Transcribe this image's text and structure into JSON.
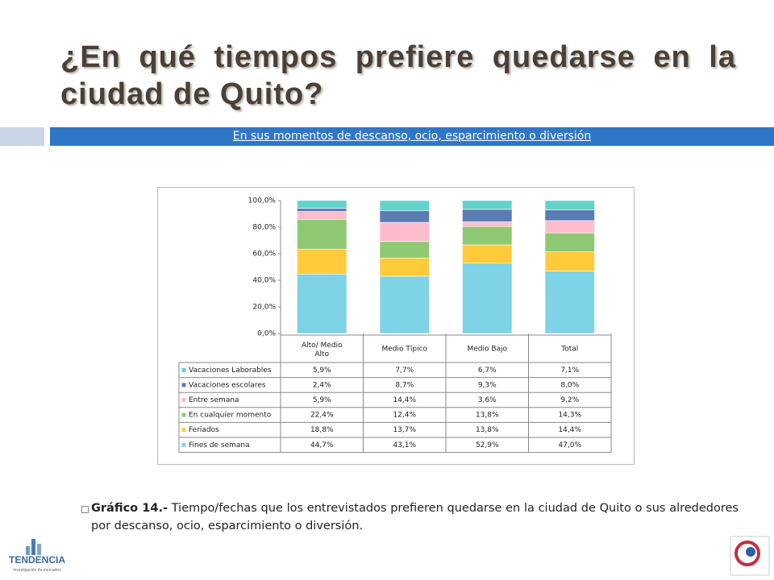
{
  "slide": {
    "title": "¿En qué tiempos prefiere quedarse en la ciudad de Quito?",
    "subtitle": "En sus momentos de descanso, ocio, esparcimiento o diversión",
    "caption_label": "Gráfico 14.-",
    "caption_text": "Tiempo/fechas que los entrevistados prefieren quedarse en la ciudad de Quito o sus alrededores por descanso, ocio, esparcimiento o diversión.",
    "logo_text": "TENDENCIA",
    "logo_subtext": "investigación de mercados"
  },
  "chart_data": {
    "type": "stacked_bar",
    "categories": [
      "Alto/ Medio Alto",
      "Medio Típico",
      "Medio Bajo",
      "Total"
    ],
    "series": [
      {
        "name": "Fines de semana",
        "color": "#7fd3e6",
        "values": [
          44.7,
          43.1,
          52.9,
          47.0
        ],
        "value_labels": [
          "44,7%",
          "43,1%",
          "52,9%",
          "47,0%"
        ]
      },
      {
        "name": "Feriados",
        "color": "#ffcb3a",
        "values": [
          18.8,
          13.7,
          13.8,
          14.4
        ],
        "value_labels": [
          "18,8%",
          "13,7%",
          "13,8%",
          "14,4%"
        ]
      },
      {
        "name": "En cualquier momento",
        "color": "#8fc873",
        "values": [
          22.4,
          12.4,
          13.8,
          14.3
        ],
        "value_labels": [
          "22,4%",
          "12,4%",
          "13,8%",
          "14,3%"
        ]
      },
      {
        "name": "Entre semana",
        "color": "#ffbccb",
        "values": [
          5.9,
          14.4,
          3.6,
          9.2
        ],
        "value_labels": [
          "5,9%",
          "14,4%",
          "3,6%",
          "9,2%"
        ]
      },
      {
        "name": "Vacaciones escolares",
        "color": "#5b7bb3",
        "values": [
          2.4,
          8.7,
          9.3,
          8.0
        ],
        "value_labels": [
          "2,4%",
          "8,7%",
          "9,3%",
          "8,0%"
        ]
      },
      {
        "name": "Vacaciones Laborables",
        "color": "#63d2cb",
        "values": [
          5.9,
          7.7,
          6.7,
          7.1
        ],
        "value_labels": [
          "5,9%",
          "7,7%",
          "6,7%",
          "7,1%"
        ]
      }
    ],
    "ylim": [
      0,
      100
    ],
    "yticks": [
      {
        "value": 0,
        "label": "0,0%"
      },
      {
        "value": 20,
        "label": "20,0%"
      },
      {
        "value": 40,
        "label": "40,0%"
      },
      {
        "value": 60,
        "label": "60,0%"
      },
      {
        "value": 80,
        "label": "80,0%"
      },
      {
        "value": 100,
        "label": "100,0%"
      }
    ],
    "grid": false
  }
}
